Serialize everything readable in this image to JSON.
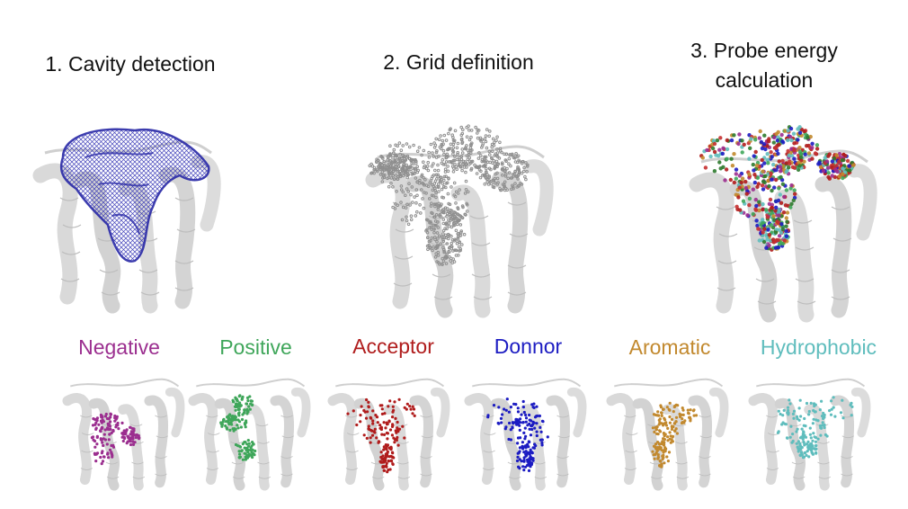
{
  "steps": [
    {
      "label": "1. Cavity detection"
    },
    {
      "label": "2. Grid definition"
    },
    {
      "label_line1": "3. Probe energy",
      "label_line2": "calculation"
    }
  ],
  "probes": [
    {
      "label": "Negative",
      "color": "#9b2e8f"
    },
    {
      "label": "Positive",
      "color": "#3fa65a"
    },
    {
      "label": "Acceptor",
      "color": "#b01c1c"
    },
    {
      "label": "Donnor",
      "color": "#1c1cc2"
    },
    {
      "label": "Aromatic",
      "color": "#c2892e"
    },
    {
      "label": "Hydrophobic",
      "color": "#5fbdbd"
    }
  ],
  "colors": {
    "protein": "#d6d6d6",
    "protein_edge": "#bdbdbd",
    "cavity_mesh": "#3232b4",
    "grid_points": "#9a9a9a"
  }
}
